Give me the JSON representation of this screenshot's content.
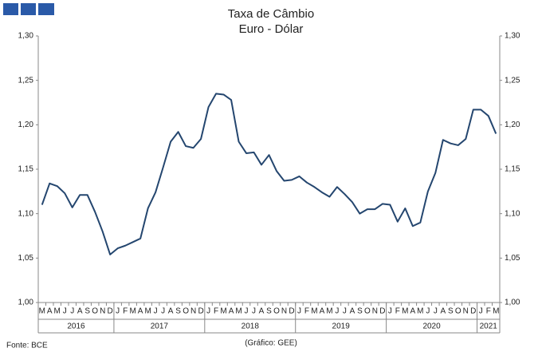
{
  "chart_data": {
    "type": "line",
    "title": "Taxa de Câmbio",
    "subtitle": "Euro - Dólar",
    "source": "Fonte: BCE",
    "note": "(Gráfico: GEE)",
    "categories": [
      "M",
      "A",
      "M",
      "J",
      "J",
      "A",
      "S",
      "O",
      "N",
      "D",
      "J",
      "F",
      "M",
      "A",
      "M",
      "J",
      "J",
      "A",
      "S",
      "O",
      "N",
      "D",
      "J",
      "F",
      "M",
      "A",
      "M",
      "J",
      "J",
      "A",
      "S",
      "O",
      "N",
      "D",
      "J",
      "F",
      "M",
      "A",
      "M",
      "J",
      "J",
      "A",
      "S",
      "O",
      "N",
      "D",
      "J",
      "F",
      "M",
      "A",
      "M",
      "J",
      "J",
      "A",
      "S",
      "O",
      "N",
      "D",
      "J",
      "F",
      "M"
    ],
    "years": [
      "2016",
      "2017",
      "2018",
      "2019",
      "2020",
      "2021"
    ],
    "series": [
      {
        "name": "Euro - Dólar",
        "color": "#24466f",
        "values": [
          1.11,
          1.134,
          1.131,
          1.123,
          1.107,
          1.121,
          1.121,
          1.102,
          1.08,
          1.054,
          1.061,
          1.064,
          1.068,
          1.072,
          1.106,
          1.124,
          1.152,
          1.181,
          1.192,
          1.176,
          1.174,
          1.184,
          1.22,
          1.235,
          1.234,
          1.228,
          1.181,
          1.168,
          1.169,
          1.155,
          1.166,
          1.148,
          1.137,
          1.138,
          1.142,
          1.135,
          1.13,
          1.124,
          1.119,
          1.13,
          1.122,
          1.113,
          1.1,
          1.105,
          1.105,
          1.111,
          1.11,
          1.091,
          1.106,
          1.086,
          1.09,
          1.125,
          1.146,
          1.183,
          1.179,
          1.177,
          1.184,
          1.217,
          1.217,
          1.21,
          1.19
        ]
      }
    ],
    "ylim": [
      1.0,
      1.3
    ],
    "yticks": [
      {
        "value": 1.0,
        "label": "1,00"
      },
      {
        "value": 1.05,
        "label": "1,05"
      },
      {
        "value": 1.1,
        "label": "1,10"
      },
      {
        "value": 1.15,
        "label": "1,15"
      },
      {
        "value": 1.2,
        "label": "1,20"
      },
      {
        "value": 1.25,
        "label": "1,25"
      },
      {
        "value": 1.3,
        "label": "1,30"
      }
    ],
    "y2lim": [
      1.0,
      1.3
    ],
    "y2ticks": [
      {
        "value": 1.0,
        "label": "1,00"
      },
      {
        "value": 1.05,
        "label": "1,05"
      },
      {
        "value": 1.1,
        "label": "1,10"
      },
      {
        "value": 1.15,
        "label": "1,15"
      },
      {
        "value": 1.2,
        "label": "1,20"
      },
      {
        "value": 1.25,
        "label": "1,25"
      },
      {
        "value": 1.3,
        "label": "1,30"
      }
    ],
    "grid": false
  }
}
